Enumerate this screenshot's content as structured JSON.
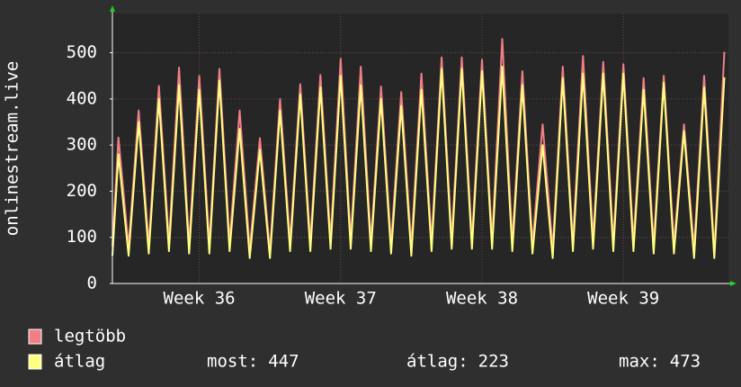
{
  "chart_data": {
    "type": "line",
    "ylabel": "onlinestream.live",
    "x": [
      0,
      0.3,
      0.8,
      1.3,
      1.8,
      2.3,
      2.8,
      3.3,
      3.8,
      4.3,
      4.8,
      5.3,
      5.8,
      6.3,
      6.8,
      7.3,
      7.8,
      8.3,
      8.8,
      9.3,
      9.8,
      10.3,
      10.8,
      11.3,
      11.8,
      12.3,
      12.8,
      13.3,
      13.8,
      14.3,
      14.8,
      15.3,
      15.8,
      16.3,
      16.8,
      17.3,
      17.8,
      18.3,
      18.8,
      19.3,
      19.8,
      20.3,
      20.8,
      21.3,
      21.8,
      22.3,
      22.8,
      23.3,
      23.8,
      24.3,
      24.8,
      25.3,
      25.8,
      26.3,
      26.8,
      27.3,
      27.8,
      28.3,
      28.8,
      29.3,
      29.8,
      30.3
    ],
    "series": [
      {
        "name": "legtöbb",
        "color": "#f07f86",
        "values": [
          80,
          316,
          80,
          375,
          85,
          428,
          90,
          468,
          85,
          450,
          85,
          465,
          90,
          375,
          75,
          315,
          70,
          400,
          90,
          432,
          90,
          452,
          95,
          487,
          95,
          470,
          90,
          427,
          85,
          415,
          80,
          455,
          90,
          490,
          95,
          490,
          95,
          485,
          95,
          530,
          90,
          460,
          85,
          345,
          75,
          470,
          90,
          493,
          95,
          480,
          90,
          475,
          90,
          445,
          85,
          450,
          85,
          345,
          75,
          450,
          70,
          502
        ]
      },
      {
        "name": "átlag",
        "color": "#ffff80",
        "values": [
          60,
          280,
          60,
          350,
          65,
          400,
          70,
          430,
          65,
          420,
          65,
          440,
          70,
          335,
          55,
          290,
          55,
          375,
          70,
          410,
          70,
          425,
          75,
          450,
          75,
          430,
          70,
          400,
          65,
          385,
          60,
          420,
          70,
          465,
          75,
          465,
          75,
          460,
          75,
          470,
          70,
          430,
          65,
          300,
          55,
          445,
          70,
          455,
          75,
          455,
          70,
          455,
          70,
          420,
          65,
          435,
          65,
          330,
          55,
          425,
          55,
          447
        ]
      }
    ],
    "xlim": [
      0,
      30.5
    ],
    "xticks": [
      {
        "value": 4.3,
        "label": "Week 36"
      },
      {
        "value": 11.3,
        "label": "Week 37"
      },
      {
        "value": 18.3,
        "label": "Week 38"
      },
      {
        "value": 25.3,
        "label": "Week 39"
      }
    ],
    "ylim": [
      0,
      585
    ],
    "yticks": [
      0,
      100,
      200,
      300,
      400,
      500
    ],
    "grid": true,
    "stats": [
      {
        "label": "most:",
        "value": 447
      },
      {
        "label": "átlag:",
        "value": 223
      },
      {
        "label": "max:",
        "value": 473
      }
    ]
  }
}
